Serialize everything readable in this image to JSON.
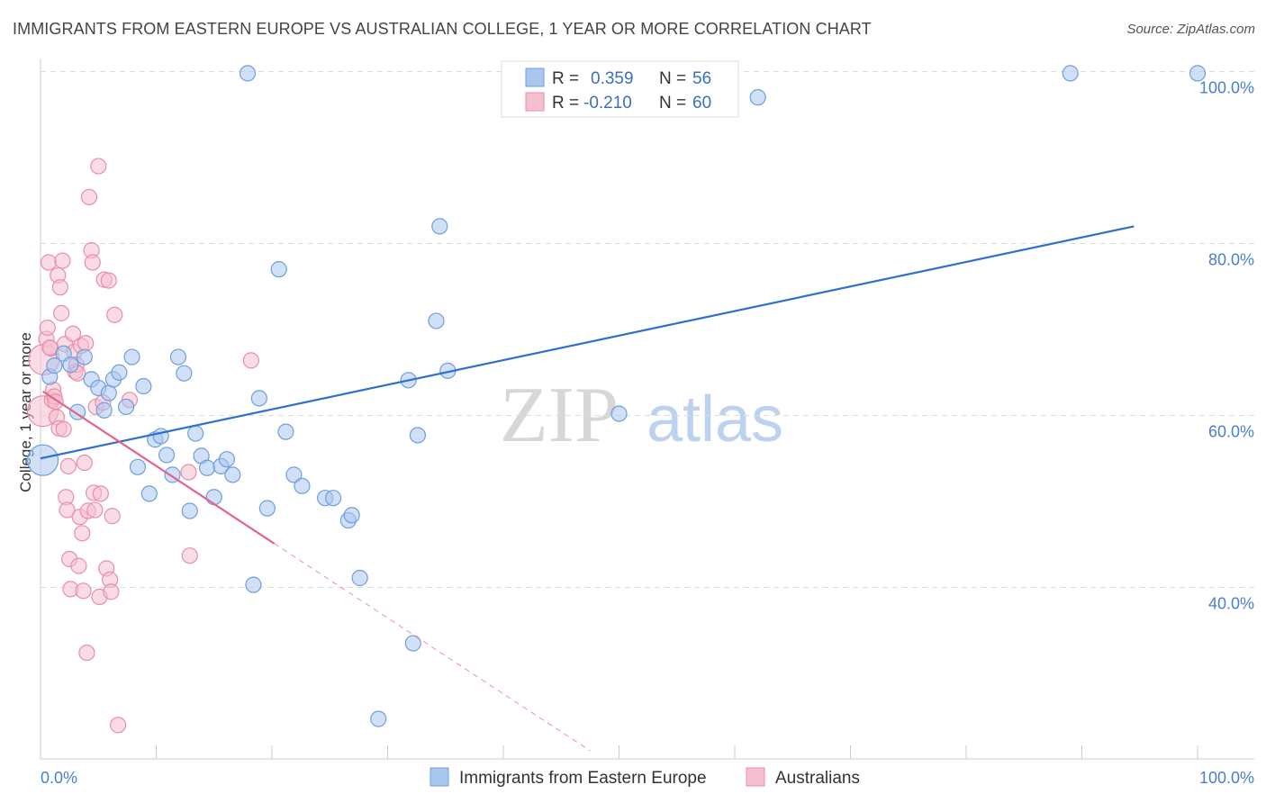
{
  "title": "IMMIGRANTS FROM EASTERN EUROPE VS AUSTRALIAN COLLEGE, 1 YEAR OR MORE CORRELATION CHART",
  "source": "Source: ZipAtlas.com",
  "watermark": {
    "zip": "ZIP",
    "atlas": "atlas"
  },
  "colors": {
    "blue_fill": "#a9c6ee",
    "blue_stroke": "#6f9fdc",
    "blue_line": "#2f6fce",
    "pink_fill": "#f6bfd0",
    "pink_stroke": "#e98eaa",
    "pink_line": "#e0648c",
    "axis_text": "#4a7fd0",
    "grid": "#dddddd"
  },
  "legend_stats": [
    {
      "r_label": "R =",
      "r_value": "0.359",
      "n_label": "N =",
      "n_value": "56"
    },
    {
      "r_label": "R =",
      "r_value": "-0.210",
      "n_label": "N =",
      "n_value": "60"
    }
  ],
  "chart_data": {
    "type": "scatter",
    "title": "IMMIGRANTS FROM EASTERN EUROPE VS AUSTRALIAN COLLEGE, 1 YEAR OR MORE CORRELATION CHART",
    "xlabel": "",
    "ylabel": "College, 1 year or more",
    "xlim": [
      0,
      100
    ],
    "ylim": [
      20,
      103
    ],
    "x_tick_labels": [
      "0.0%",
      "100.0%"
    ],
    "y_ticks": [
      40,
      60,
      80,
      100
    ],
    "y_tick_labels": [
      "40.0%",
      "60.0%",
      "80.0%",
      "100.0%"
    ],
    "series": [
      {
        "name": "Immigrants from Eastern Europe",
        "color": "blue",
        "trend": {
          "x": [
            0,
            94.5
          ],
          "y": [
            55.0,
            82.0
          ]
        },
        "points": [
          [
            0.2,
            54.8
          ],
          [
            0.8,
            64.5
          ],
          [
            1.2,
            65.8
          ],
          [
            2.0,
            67.2
          ],
          [
            2.6,
            65.9
          ],
          [
            3.2,
            60.4
          ],
          [
            3.8,
            66.8
          ],
          [
            4.4,
            64.2
          ],
          [
            5.0,
            63.2
          ],
          [
            5.5,
            60.6
          ],
          [
            5.9,
            62.6
          ],
          [
            6.3,
            64.2
          ],
          [
            6.8,
            65.0
          ],
          [
            7.4,
            61.0
          ],
          [
            7.9,
            66.8
          ],
          [
            8.4,
            54.0
          ],
          [
            8.9,
            63.4
          ],
          [
            9.4,
            50.9
          ],
          [
            9.9,
            57.2
          ],
          [
            10.4,
            57.6
          ],
          [
            10.9,
            55.4
          ],
          [
            11.4,
            53.1
          ],
          [
            11.9,
            66.8
          ],
          [
            12.4,
            64.9
          ],
          [
            12.9,
            48.9
          ],
          [
            13.4,
            57.9
          ],
          [
            13.9,
            55.3
          ],
          [
            14.4,
            53.9
          ],
          [
            15.0,
            50.5
          ],
          [
            15.6,
            54.1
          ],
          [
            16.1,
            54.9
          ],
          [
            16.6,
            53.1
          ],
          [
            17.9,
            99.8
          ],
          [
            18.4,
            40.3
          ],
          [
            18.9,
            62.0
          ],
          [
            19.6,
            49.2
          ],
          [
            20.6,
            77.0
          ],
          [
            21.2,
            58.1
          ],
          [
            21.9,
            53.1
          ],
          [
            22.6,
            51.8
          ],
          [
            24.6,
            50.4
          ],
          [
            25.3,
            50.4
          ],
          [
            26.6,
            47.8
          ],
          [
            26.9,
            48.4
          ],
          [
            27.6,
            41.1
          ],
          [
            29.2,
            24.7
          ],
          [
            31.8,
            64.1
          ],
          [
            32.2,
            33.5
          ],
          [
            32.6,
            57.7
          ],
          [
            34.2,
            71.0
          ],
          [
            34.5,
            82.0
          ],
          [
            35.2,
            65.2
          ],
          [
            50.0,
            60.2
          ],
          [
            89.0,
            99.8
          ],
          [
            100.0,
            99.8
          ],
          [
            62.0,
            97.0
          ]
        ]
      },
      {
        "name": "Australians",
        "color": "pink",
        "trend": {
          "x": [
            0.2,
            20.2
          ],
          "y": [
            62.8,
            45.1
          ]
        },
        "trend_dashed": {
          "x": [
            20.2,
            47.5
          ],
          "y": [
            45.1,
            21.0
          ]
        },
        "points": [
          [
            0.2,
            60.5
          ],
          [
            0.3,
            66.5
          ],
          [
            0.5,
            68.9
          ],
          [
            0.6,
            70.2
          ],
          [
            0.7,
            77.8
          ],
          [
            0.9,
            67.8
          ],
          [
            1.0,
            61.8
          ],
          [
            1.1,
            63.0
          ],
          [
            1.2,
            62.2
          ],
          [
            1.4,
            59.8
          ],
          [
            1.5,
            76.3
          ],
          [
            1.6,
            58.5
          ],
          [
            1.7,
            74.9
          ],
          [
            1.8,
            71.9
          ],
          [
            1.9,
            78.0
          ],
          [
            2.1,
            68.3
          ],
          [
            2.2,
            50.5
          ],
          [
            2.3,
            49.0
          ],
          [
            2.4,
            54.1
          ],
          [
            2.5,
            43.3
          ],
          [
            2.6,
            39.8
          ],
          [
            2.8,
            69.5
          ],
          [
            2.9,
            67.4
          ],
          [
            3.0,
            65.1
          ],
          [
            3.1,
            65.9
          ],
          [
            3.3,
            42.5
          ],
          [
            3.4,
            48.2
          ],
          [
            3.5,
            68.1
          ],
          [
            3.6,
            46.3
          ],
          [
            3.7,
            39.6
          ],
          [
            3.8,
            54.5
          ],
          [
            3.9,
            68.4
          ],
          [
            4.0,
            32.4
          ],
          [
            4.1,
            48.9
          ],
          [
            4.2,
            85.4
          ],
          [
            4.4,
            79.2
          ],
          [
            4.5,
            77.8
          ],
          [
            4.6,
            51.0
          ],
          [
            4.8,
            61.0
          ],
          [
            5.0,
            89.0
          ],
          [
            5.1,
            38.9
          ],
          [
            5.2,
            50.9
          ],
          [
            5.5,
            75.8
          ],
          [
            5.7,
            42.2
          ],
          [
            5.9,
            75.7
          ],
          [
            6.0,
            40.9
          ],
          [
            6.1,
            39.5
          ],
          [
            6.2,
            48.3
          ],
          [
            6.4,
            71.7
          ],
          [
            6.7,
            24.0
          ],
          [
            7.7,
            61.8
          ],
          [
            12.8,
            53.4
          ],
          [
            12.9,
            43.7
          ],
          [
            18.2,
            66.4
          ],
          [
            1.3,
            61.6
          ],
          [
            0.8,
            67.9
          ],
          [
            2.0,
            58.4
          ],
          [
            3.2,
            64.9
          ],
          [
            4.7,
            49.0
          ],
          [
            5.4,
            61.5
          ]
        ]
      }
    ]
  },
  "bottom_legend": [
    {
      "label": "Immigrants from Eastern Europe"
    },
    {
      "label": "Australians"
    }
  ]
}
